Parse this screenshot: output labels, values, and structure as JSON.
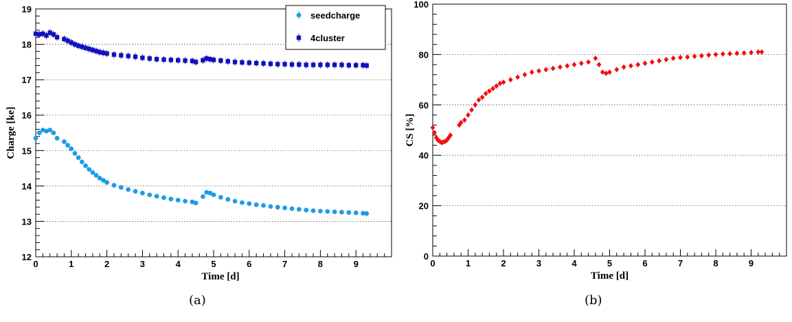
{
  "chart_data": [
    {
      "type": "scatter",
      "caption": "(a)",
      "xlabel": "Time [d]",
      "ylabel": "Charge [ke]",
      "xlim": [
        0,
        10
      ],
      "ylim": [
        12,
        19
      ],
      "xticks": [
        0,
        1,
        2,
        3,
        4,
        5,
        6,
        7,
        8,
        9
      ],
      "yticks": [
        12,
        13,
        14,
        15,
        16,
        17,
        18,
        19
      ],
      "grid": "horizontal-dotted",
      "legend_position": "top-right",
      "series": [
        {
          "name": "seedcharge",
          "color": "#1e9be6",
          "marker": "circle",
          "points": [
            [
              0.0,
              15.35
            ],
            [
              0.1,
              15.5
            ],
            [
              0.2,
              15.58
            ],
            [
              0.3,
              15.55
            ],
            [
              0.4,
              15.58
            ],
            [
              0.5,
              15.5
            ],
            [
              0.6,
              15.35
            ],
            [
              0.8,
              15.25
            ],
            [
              0.9,
              15.15
            ],
            [
              1.0,
              15.05
            ],
            [
              1.1,
              14.92
            ],
            [
              1.2,
              14.8
            ],
            [
              1.3,
              14.68
            ],
            [
              1.4,
              14.57
            ],
            [
              1.5,
              14.47
            ],
            [
              1.6,
              14.38
            ],
            [
              1.7,
              14.3
            ],
            [
              1.8,
              14.22
            ],
            [
              1.9,
              14.16
            ],
            [
              2.0,
              14.1
            ],
            [
              2.2,
              14.02
            ],
            [
              2.4,
              13.96
            ],
            [
              2.6,
              13.9
            ],
            [
              2.8,
              13.85
            ],
            [
              3.0,
              13.8
            ],
            [
              3.2,
              13.75
            ],
            [
              3.4,
              13.71
            ],
            [
              3.6,
              13.67
            ],
            [
              3.8,
              13.63
            ],
            [
              4.0,
              13.6
            ],
            [
              4.2,
              13.57
            ],
            [
              4.4,
              13.55
            ],
            [
              4.5,
              13.52
            ],
            [
              4.7,
              13.7
            ],
            [
              4.8,
              13.82
            ],
            [
              4.9,
              13.8
            ],
            [
              5.0,
              13.75
            ],
            [
              5.2,
              13.68
            ],
            [
              5.4,
              13.62
            ],
            [
              5.6,
              13.57
            ],
            [
              5.8,
              13.53
            ],
            [
              6.0,
              13.5
            ],
            [
              6.2,
              13.47
            ],
            [
              6.4,
              13.45
            ],
            [
              6.6,
              13.42
            ],
            [
              6.8,
              13.4
            ],
            [
              7.0,
              13.38
            ],
            [
              7.2,
              13.36
            ],
            [
              7.4,
              13.34
            ],
            [
              7.6,
              13.32
            ],
            [
              7.8,
              13.3
            ],
            [
              8.0,
              13.29
            ],
            [
              8.2,
              13.28
            ],
            [
              8.4,
              13.27
            ],
            [
              8.6,
              13.26
            ],
            [
              8.8,
              13.25
            ],
            [
              9.0,
              13.24
            ],
            [
              9.2,
              13.23
            ],
            [
              9.3,
              13.22
            ]
          ]
        },
        {
          "name": "4cluster",
          "color": "#1010c0",
          "marker": "square",
          "points": [
            [
              0.0,
              18.3
            ],
            [
              0.1,
              18.28
            ],
            [
              0.2,
              18.3
            ],
            [
              0.3,
              18.25
            ],
            [
              0.4,
              18.33
            ],
            [
              0.5,
              18.28
            ],
            [
              0.6,
              18.2
            ],
            [
              0.8,
              18.15
            ],
            [
              0.9,
              18.1
            ],
            [
              1.0,
              18.05
            ],
            [
              1.1,
              18.0
            ],
            [
              1.2,
              17.96
            ],
            [
              1.3,
              17.93
            ],
            [
              1.4,
              17.9
            ],
            [
              1.5,
              17.87
            ],
            [
              1.6,
              17.84
            ],
            [
              1.7,
              17.81
            ],
            [
              1.8,
              17.78
            ],
            [
              1.9,
              17.76
            ],
            [
              2.0,
              17.74
            ],
            [
              2.2,
              17.71
            ],
            [
              2.4,
              17.69
            ],
            [
              2.6,
              17.67
            ],
            [
              2.8,
              17.65
            ],
            [
              3.0,
              17.62
            ],
            [
              3.2,
              17.6
            ],
            [
              3.4,
              17.58
            ],
            [
              3.6,
              17.57
            ],
            [
              3.8,
              17.56
            ],
            [
              4.0,
              17.55
            ],
            [
              4.2,
              17.54
            ],
            [
              4.4,
              17.53
            ],
            [
              4.5,
              17.5
            ],
            [
              4.7,
              17.55
            ],
            [
              4.8,
              17.6
            ],
            [
              4.9,
              17.58
            ],
            [
              5.0,
              17.56
            ],
            [
              5.2,
              17.54
            ],
            [
              5.4,
              17.52
            ],
            [
              5.6,
              17.5
            ],
            [
              5.8,
              17.49
            ],
            [
              6.0,
              17.48
            ],
            [
              6.2,
              17.47
            ],
            [
              6.4,
              17.46
            ],
            [
              6.6,
              17.45
            ],
            [
              6.8,
              17.44
            ],
            [
              7.0,
              17.44
            ],
            [
              7.2,
              17.43
            ],
            [
              7.4,
              17.43
            ],
            [
              7.6,
              17.42
            ],
            [
              7.8,
              17.42
            ],
            [
              8.0,
              17.42
            ],
            [
              8.2,
              17.42
            ],
            [
              8.4,
              17.42
            ],
            [
              8.6,
              17.42
            ],
            [
              8.8,
              17.41
            ],
            [
              9.0,
              17.41
            ],
            [
              9.2,
              17.41
            ],
            [
              9.3,
              17.4
            ]
          ]
        }
      ]
    },
    {
      "type": "scatter",
      "caption": "(b)",
      "xlabel": "Time [d]",
      "ylabel": "CS [%]",
      "xlim": [
        0,
        10
      ],
      "ylim": [
        0,
        100
      ],
      "xticks": [
        0,
        1,
        2,
        3,
        4,
        5,
        6,
        7,
        8,
        9
      ],
      "yticks": [
        0,
        20,
        40,
        60,
        80,
        100
      ],
      "grid": "horizontal-dotted",
      "series": [
        {
          "color": "#ee1111",
          "marker": "diamond",
          "points": [
            [
              0.0,
              51
            ],
            [
              0.05,
              49
            ],
            [
              0.1,
              47
            ],
            [
              0.15,
              46
            ],
            [
              0.2,
              45.5
            ],
            [
              0.25,
              45
            ],
            [
              0.3,
              45.3
            ],
            [
              0.35,
              45.5
            ],
            [
              0.4,
              46
            ],
            [
              0.45,
              47
            ],
            [
              0.5,
              48
            ],
            [
              0.75,
              52
            ],
            [
              0.8,
              53
            ],
            [
              0.9,
              54
            ],
            [
              1.0,
              56
            ],
            [
              1.1,
              58
            ],
            [
              1.2,
              60
            ],
            [
              1.3,
              62
            ],
            [
              1.4,
              63
            ],
            [
              1.5,
              64.5
            ],
            [
              1.6,
              65.5
            ],
            [
              1.7,
              66.5
            ],
            [
              1.8,
              67.5
            ],
            [
              1.9,
              68.5
            ],
            [
              2.0,
              69
            ],
            [
              2.2,
              70
            ],
            [
              2.4,
              71
            ],
            [
              2.6,
              72
            ],
            [
              2.8,
              73
            ],
            [
              3.0,
              73.5
            ],
            [
              3.2,
              74
            ],
            [
              3.4,
              74.5
            ],
            [
              3.6,
              75
            ],
            [
              3.8,
              75.5
            ],
            [
              4.0,
              76
            ],
            [
              4.2,
              76.5
            ],
            [
              4.4,
              77
            ],
            [
              4.6,
              78.5
            ],
            [
              4.7,
              76
            ],
            [
              4.8,
              73
            ],
            [
              4.9,
              72.5
            ],
            [
              5.0,
              73
            ],
            [
              5.2,
              74
            ],
            [
              5.4,
              75
            ],
            [
              5.6,
              75.5
            ],
            [
              5.8,
              76
            ],
            [
              6.0,
              76.5
            ],
            [
              6.2,
              77
            ],
            [
              6.4,
              77.5
            ],
            [
              6.6,
              78
            ],
            [
              6.8,
              78.5
            ],
            [
              7.0,
              78.8
            ],
            [
              7.2,
              79
            ],
            [
              7.4,
              79.3
            ],
            [
              7.6,
              79.5
            ],
            [
              7.8,
              79.8
            ],
            [
              8.0,
              80
            ],
            [
              8.2,
              80.2
            ],
            [
              8.4,
              80.3
            ],
            [
              8.6,
              80.5
            ],
            [
              8.8,
              80.6
            ],
            [
              9.0,
              80.8
            ],
            [
              9.2,
              81
            ],
            [
              9.3,
              81
            ]
          ]
        }
      ]
    }
  ]
}
